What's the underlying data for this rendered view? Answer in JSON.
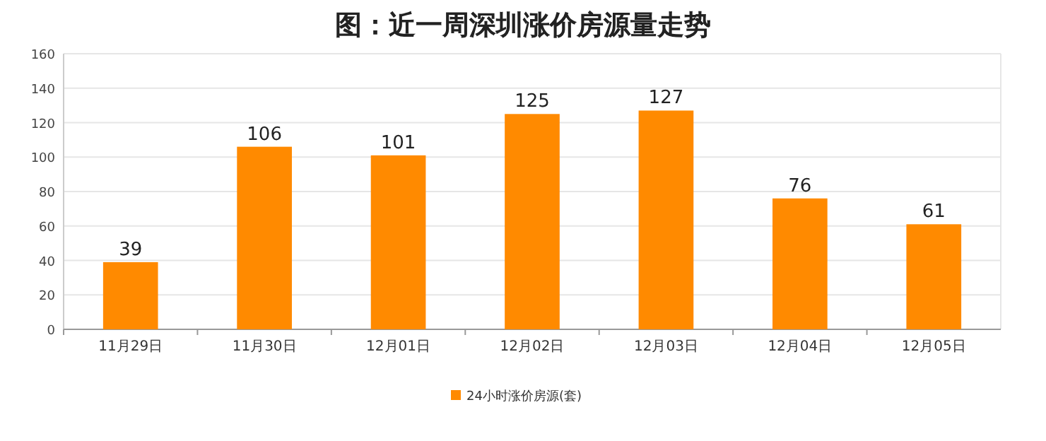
{
  "chart_data": {
    "type": "bar",
    "title": "图：近一周深圳涨价房源量走势",
    "categories": [
      "11月29日",
      "11月30日",
      "12月01日",
      "12月02日",
      "12月03日",
      "12月04日",
      "12月05日"
    ],
    "series": [
      {
        "name": "24小时涨价房源(套)",
        "color": "#ff8a00",
        "values": [
          39,
          106,
          101,
          125,
          127,
          76,
          61
        ]
      }
    ],
    "ylim": [
      0,
      160
    ],
    "yticks": [
      0,
      20,
      40,
      60,
      80,
      100,
      120,
      140,
      160
    ],
    "grid": "y",
    "legend": "bottom",
    "data_labels": true
  }
}
